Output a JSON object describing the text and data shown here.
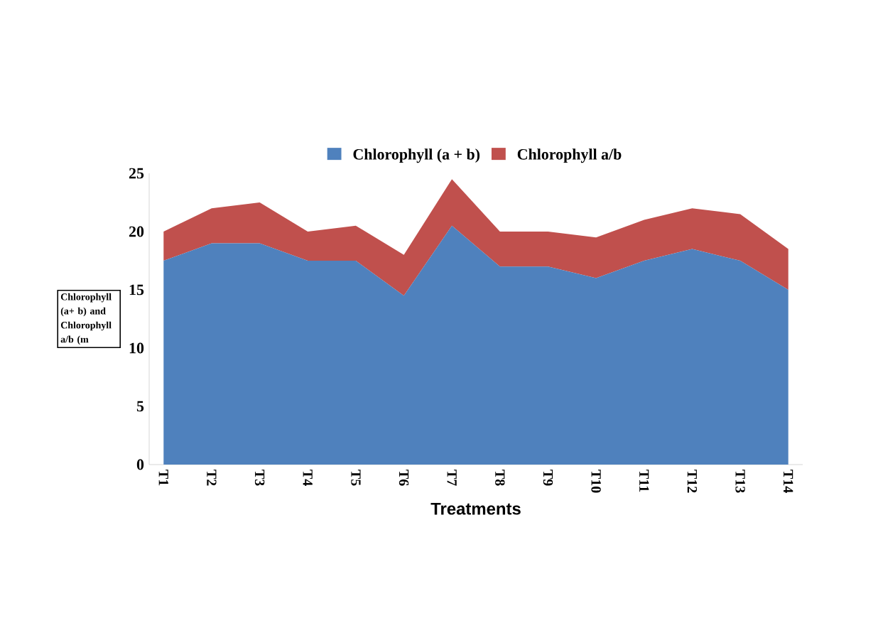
{
  "chart_data": {
    "type": "area",
    "stacked": true,
    "xlabel": "Treatments",
    "ylabel": "Chlorophyll (a+ b) and Chlorophyll a/b (m",
    "categories": [
      "T1",
      "T2",
      "T3",
      "T4",
      "T5",
      "T6",
      "T7",
      "T8",
      "T9",
      "T10",
      "T11",
      "T12",
      "T13",
      "T14"
    ],
    "series": [
      {
        "name": "Chlorophyll (a + b)",
        "color": "#4f81bd",
        "values": [
          17.5,
          19,
          19,
          17.5,
          17.5,
          14.5,
          20.5,
          17,
          17,
          16,
          17.5,
          18.5,
          17.5,
          15
        ]
      },
      {
        "name": "Chlorophyll a/b",
        "color": "#c0504d",
        "values": [
          2.5,
          3,
          3.5,
          2.5,
          3,
          3.5,
          4,
          3,
          3,
          3.5,
          3.5,
          3.5,
          4,
          3.5
        ]
      }
    ],
    "ylim": [
      0,
      25
    ],
    "yticks": [
      0,
      5,
      10,
      15,
      20,
      25
    ],
    "legend": "top",
    "grid": false
  }
}
